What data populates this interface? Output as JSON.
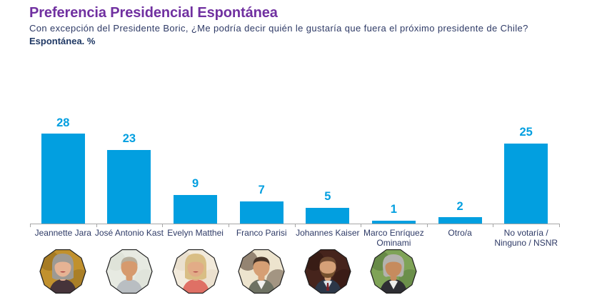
{
  "header": {
    "title": "Preferencia Presidencial Espontánea",
    "question": "Con excepción del Presidente Boric, ¿Me podría decir quién le gustaría que fuera el próximo presidente de Chile?",
    "measure": "Espontánea. %"
  },
  "chart_data": {
    "type": "bar",
    "title": "Preferencia Presidencial Espontánea",
    "xlabel": "",
    "ylabel": "%",
    "ylim": [
      0,
      30
    ],
    "grid": false,
    "legend": false,
    "categories": [
      "Jeannette Jara",
      "José Antonio Kast",
      "Evelyn Matthei",
      "Franco Parisi",
      "Johannes Kaiser",
      "Marco Enríquez\nOminami",
      "Otro/a",
      "No votaría /\nNinguno / NSNR"
    ],
    "values": [
      28,
      23,
      9,
      7,
      5,
      1,
      2,
      25
    ],
    "bar_color": "#029FE0",
    "value_label_color": "#029FE0",
    "category_label_color": "#2E3A66",
    "axis_color": "#A6A6A6"
  },
  "photos": [
    {
      "name": "Jeannette Jara",
      "style": "bob",
      "bg": "#C1912E",
      "bg2": "#8F6A1E",
      "hair": "#9D9A94",
      "skin": "#E6B394",
      "top": "#46343A",
      "shirt": "",
      "tie": "",
      "beard": "",
      "lips": "#A63A3C"
    },
    {
      "name": "José Antonio Kast",
      "style": "short",
      "bg": "#E7EAE2",
      "bg2": "#D8DDD2",
      "hair": "#B7AF9D",
      "skin": "#D69A6E",
      "top": "#B9BEC2",
      "shirt": "",
      "tie": "",
      "beard": "",
      "lips": ""
    },
    {
      "name": "Evelyn Matthei",
      "style": "bob",
      "bg": "#F2EADB",
      "bg2": "#E4D7C2",
      "hair": "#D9BE85",
      "skin": "#E2AC87",
      "top": "#DF7065",
      "shirt": "",
      "tie": "",
      "beard": "",
      "lips": "#B04A4A"
    },
    {
      "name": "Franco Parisi",
      "style": "short",
      "bg": "#EDE4CE",
      "bg2": "#4A3526",
      "hair": "#453327",
      "skin": "#D69F74",
      "top": "#6E7263",
      "shirt": "#F2F2F0",
      "tie": "",
      "beard": "",
      "lips": ""
    },
    {
      "name": "Johannes Kaiser",
      "style": "short",
      "bg": "#46241C",
      "bg2": "#2E1510",
      "hair": "#6E4A31",
      "skin": "#D6A178",
      "top": "#2C3748",
      "shirt": "#DCE4EA",
      "tie": "#7C2026",
      "beard": "#77522F",
      "lips": ""
    },
    {
      "name": "Marco Enríquez Ominami",
      "style": "wavy",
      "bg": "#7FA357",
      "bg2": "#54773B",
      "hair": "#B3B2AE",
      "skin": "#C68B5E",
      "top": "#2E2E33",
      "shirt": "#EDEDEB",
      "tie": "",
      "beard": "",
      "lips": ""
    }
  ]
}
